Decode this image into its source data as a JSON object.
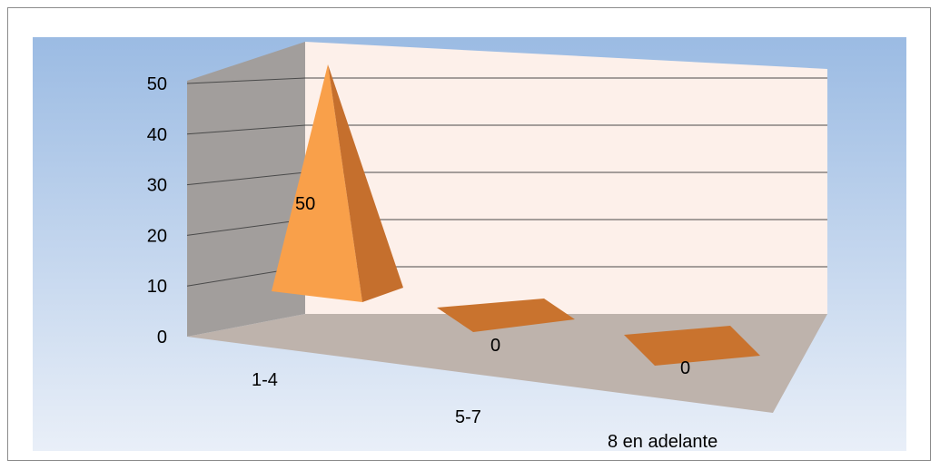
{
  "chart_data": {
    "type": "bar",
    "bar_shape": "pyramid-3d",
    "categories": [
      "1-4",
      "5-7",
      "8 en adelante"
    ],
    "values": [
      50,
      0,
      0
    ],
    "value_labels": [
      "50",
      "0",
      "0"
    ],
    "y_ticks": [
      "0",
      "10",
      "20",
      "30",
      "40",
      "50"
    ],
    "ylim": [
      0,
      50
    ],
    "grid": true,
    "legend": "none",
    "colors": {
      "bar_front": "#f9a04a",
      "bar_side": "#c56f2d",
      "floor_bar": "#c9732e",
      "plot_background_top": "#9bbbe3",
      "plot_background_bottom": "#e9eff8",
      "back_wall": "#fdf0ea",
      "side_wall": "#a29e9c",
      "floor": "#beb3ac",
      "gridline": "#4a4a4a"
    }
  }
}
